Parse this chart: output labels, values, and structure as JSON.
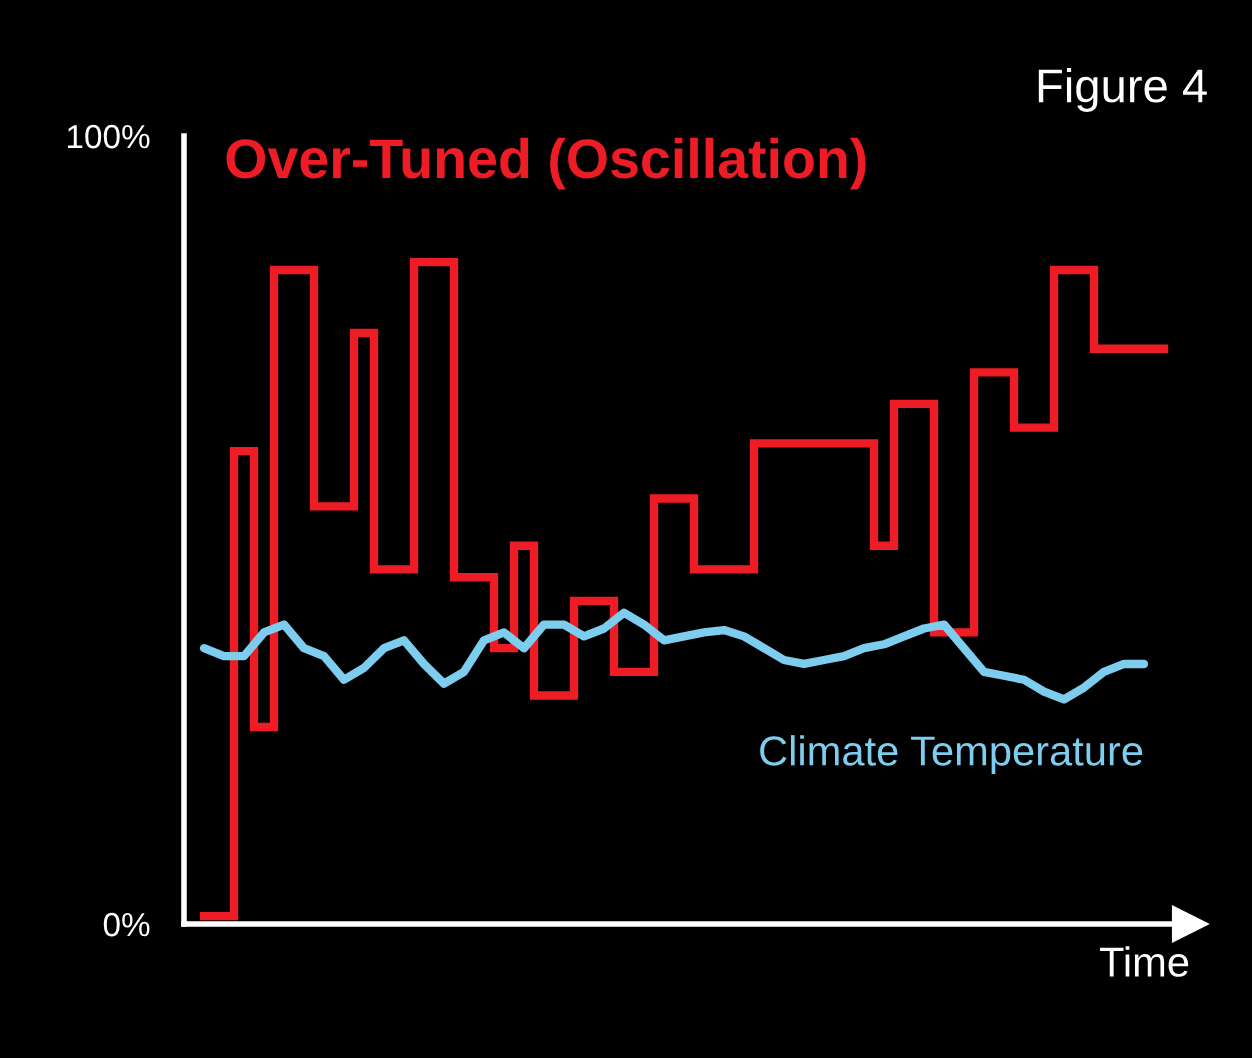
{
  "chart_data": {
    "type": "step",
    "title": "Over-Tuned (Oscillation)",
    "xlabel": "Time",
    "annotations": [
      "Figure 4"
    ],
    "categories": [
      null,
      null,
      null,
      null,
      null,
      null,
      null,
      null,
      null,
      null,
      null,
      null,
      null,
      null,
      null,
      null,
      null,
      null,
      null,
      null,
      null,
      null,
      null,
      null,
      null,
      null,
      null,
      null,
      null,
      null,
      null,
      null,
      null,
      null,
      null,
      null,
      null,
      null,
      null,
      null,
      null,
      null,
      null,
      null,
      null,
      null,
      null,
      null,
      null
    ],
    "ylim": [
      0,
      100
    ],
    "yticks": [
      {
        "value": 0,
        "label": "0%"
      },
      {
        "value": 100,
        "label": "100%"
      }
    ],
    "tick_labels": "y",
    "series": [
      {
        "color": "#ee1c25",
        "values": [
          1,
          1,
          60,
          25,
          83,
          83,
          53,
          53,
          75,
          45,
          45,
          84,
          84,
          44,
          44,
          35,
          48,
          29,
          29,
          41,
          41,
          32,
          32,
          54,
          54,
          45,
          45,
          45,
          61,
          61,
          61,
          61,
          61,
          61,
          48,
          66,
          66,
          37,
          37,
          70,
          70,
          63,
          63,
          83,
          83,
          73,
          73,
          73,
          73
        ]
      },
      {
        "type": "line",
        "name": "Climate Temperature",
        "color": "#7dcdef",
        "values": [
          35,
          34,
          34,
          37,
          38,
          35,
          34,
          31,
          32.5,
          35,
          36,
          33,
          30.5,
          32,
          36,
          37,
          35,
          38,
          38,
          36.5,
          37.5,
          39.5,
          38,
          36,
          36.5,
          37,
          37.3,
          36.5,
          35,
          33.5,
          33,
          33.5,
          34,
          35,
          35.5,
          36.5,
          37.5,
          38,
          35,
          32,
          31.5,
          31,
          29.5,
          28.5,
          30,
          32,
          33,
          33,
          null
        ]
      }
    ]
  }
}
